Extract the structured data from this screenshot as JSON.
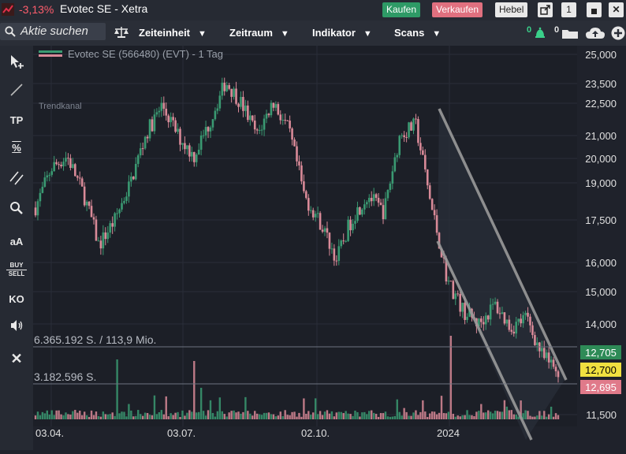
{
  "header": {
    "change": "-3,13%",
    "title": "Evotec SE - Xetra",
    "buy_label": "Kaufen",
    "sell_label": "Verkaufen",
    "leverage_label": "Hebel",
    "window_count": "1"
  },
  "toolbar": {
    "search_placeholder": "Aktie suchen",
    "menus": [
      "Zeiteinheit",
      "Zeitraum",
      "Indikator",
      "Scans"
    ],
    "alert_count": "0",
    "folder_count": "0"
  },
  "sidebar": {
    "tp_label": "TP",
    "percent_label": "%",
    "aa_label": "aA",
    "buy_label": "BUY",
    "sell_label": "SELL",
    "ko_label": "KO"
  },
  "chart": {
    "legend_label": "Evotec SE (566480) (EVT) - 1 Tag",
    "annotation": "Trendkanal",
    "volume_line_high": "6.365.192 S. / 113,9 Mio.",
    "volume_line_low": "3.182.596 S.",
    "price_ticks": [
      "25,000",
      "23,500",
      "22,500",
      "21,000",
      "20,000",
      "19,000",
      "17,500",
      "16,000",
      "15,000",
      "14,000",
      "11,500"
    ],
    "date_ticks": [
      "03.04.",
      "03.07.",
      "02.10.",
      "2024"
    ],
    "price_labels": [
      {
        "value": "12,705",
        "bg": "#2e8b57",
        "fg": "#ffffff"
      },
      {
        "value": "12,700",
        "bg": "#f0e040",
        "fg": "#000000"
      },
      {
        "value": "12,695",
        "bg": "#e07a8a",
        "fg": "#ffffff"
      }
    ]
  },
  "chart_data": {
    "type": "candlestick",
    "title": "Evotec SE (566480) (EVT) - 1 Tag",
    "y_scale": "log",
    "y_ticks": [
      25,
      23.5,
      22.5,
      21,
      20,
      19,
      17.5,
      16,
      15,
      14,
      11.5
    ],
    "x_ticks": [
      "03.04.",
      "03.07.",
      "02.10.",
      "2024"
    ],
    "last_price": 12.7,
    "bid": 12.695,
    "ask": 12.705,
    "close_series": [
      18.0,
      19.6,
      20.1,
      18.6,
      16.6,
      17.5,
      19.0,
      21.1,
      22.4,
      21.0,
      20.1,
      21.6,
      23.6,
      22.5,
      21.0,
      22.6,
      21.2,
      18.4,
      17.4,
      16.1,
      17.6,
      18.5,
      17.8,
      21.0,
      21.5,
      18.0,
      15.4,
      14.4,
      14.0,
      14.6,
      13.9,
      14.2,
      13.1,
      12.7
    ],
    "colors": {
      "up": "#3a9a72",
      "down": "#d98a98",
      "channel": "#9a9a9a",
      "background": "#1f222b"
    }
  }
}
